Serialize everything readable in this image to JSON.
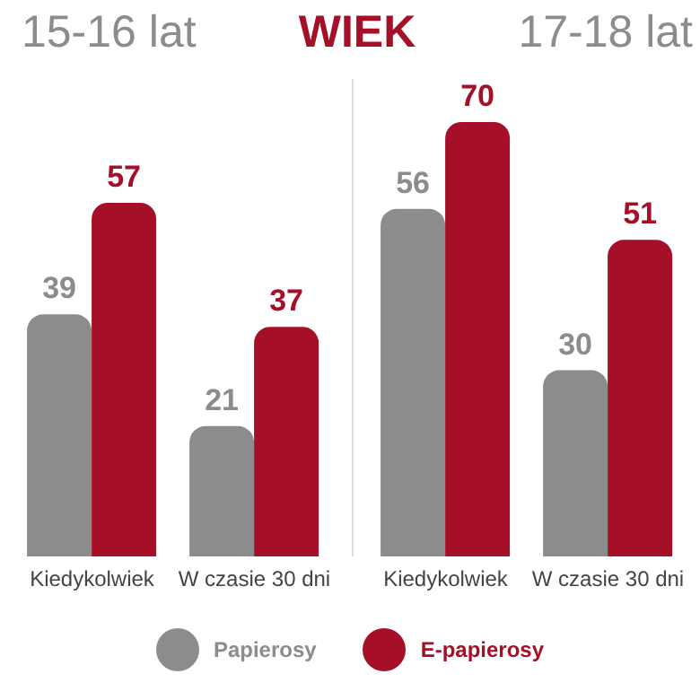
{
  "chart_data": [
    {
      "type": "bar",
      "title": "15-16 lat",
      "annotations": [
        "WIEK"
      ],
      "categories": [
        "Kiedykolwiek",
        "W czasie 30 dni"
      ],
      "series": [
        {
          "name": "Papierosy",
          "color": "#8c8c8c",
          "values": [
            39,
            21
          ]
        },
        {
          "name": "E-papierosy",
          "color": "#a50f27",
          "values": [
            57,
            37
          ]
        }
      ],
      "data_labels": true,
      "legend": "bottom"
    },
    {
      "type": "bar",
      "title": "17-18 lat",
      "categories": [
        "Kiedykolwiek",
        "W czasie 30 dni"
      ],
      "series": [
        {
          "name": "Papierosy",
          "color": "#8c8c8c",
          "values": [
            56,
            30
          ]
        },
        {
          "name": "E-papierosy",
          "color": "#a50f27",
          "values": [
            70,
            51
          ]
        }
      ],
      "data_labels": true,
      "legend": "bottom"
    }
  ]
}
